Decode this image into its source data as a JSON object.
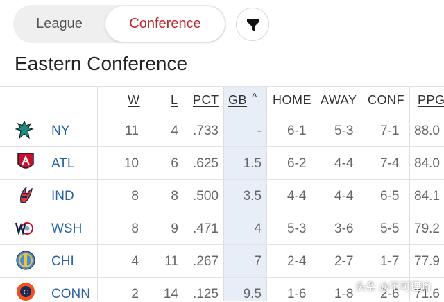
{
  "toggle": {
    "league_label": "League",
    "conference_label": "Conference",
    "active": "Conference"
  },
  "filter": {
    "icon": "filter-icon"
  },
  "section_title": "Eastern Conference",
  "columns": {
    "w": "W",
    "l": "L",
    "pct": "PCT",
    "gb": "GB",
    "gb_sort": "^",
    "home": "HOME",
    "away": "AWAY",
    "conf": "CONF",
    "ppg": "PPG"
  },
  "teams": [
    {
      "abbr": "NY",
      "w": "11",
      "l": "4",
      "pct": ".733",
      "gb": "-",
      "home": "6-1",
      "away": "5-3",
      "conf": "7-1",
      "ppg": "88.0",
      "logo_color": "#1f8a7e"
    },
    {
      "abbr": "ATL",
      "w": "10",
      "l": "6",
      "pct": ".625",
      "gb": "1.5",
      "home": "6-2",
      "away": "4-4",
      "conf": "7-4",
      "ppg": "84.0",
      "logo_color": "#c8102e"
    },
    {
      "abbr": "IND",
      "w": "8",
      "l": "8",
      "pct": ".500",
      "gb": "3.5",
      "home": "4-4",
      "away": "4-4",
      "conf": "6-5",
      "ppg": "84.1",
      "logo_color": "#e03a3e"
    },
    {
      "abbr": "WSH",
      "w": "8",
      "l": "9",
      "pct": ".471",
      "gb": "4",
      "home": "5-3",
      "away": "3-6",
      "conf": "5-5",
      "ppg": "79.2",
      "logo_color": "#0c2340"
    },
    {
      "abbr": "CHI",
      "w": "4",
      "l": "11",
      "pct": ".267",
      "gb": "7",
      "home": "2-4",
      "away": "2-7",
      "conf": "1-7",
      "ppg": "77.9",
      "logo_color": "#418fde"
    },
    {
      "abbr": "CONN",
      "w": "2",
      "l": "14",
      "pct": ".125",
      "gb": "9.5",
      "home": "1-6",
      "away": "1-8",
      "conf": "2-6",
      "ppg": "71.6",
      "logo_color": "#f05023"
    }
  ],
  "watermark": "头条 @不可理喻"
}
